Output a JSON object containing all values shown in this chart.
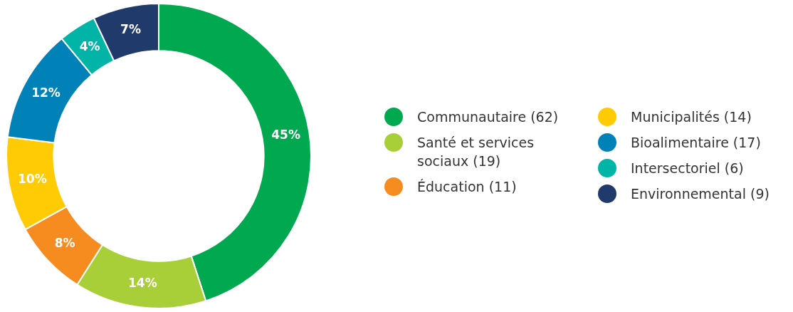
{
  "chart_data": {
    "type": "donut",
    "categories": [
      "Communautaire (62)",
      "Santé et services sociaux (19)",
      "Éducation (11)",
      "Municipalités (14)",
      "Bioalimentaire (17)",
      "Intersectoriel (6)",
      "Environnemental (9)"
    ],
    "values": [
      45,
      14,
      8,
      10,
      12,
      4,
      7
    ],
    "value_labels": [
      "45%",
      "14%",
      "8%",
      "10%",
      "12%",
      "4%",
      "7%"
    ],
    "colors": [
      "#00a94f",
      "#a8cf38",
      "#f68b1f",
      "#ffcb05",
      "#0081b8",
      "#00b5a6",
      "#203a6c"
    ],
    "legend": "right"
  }
}
